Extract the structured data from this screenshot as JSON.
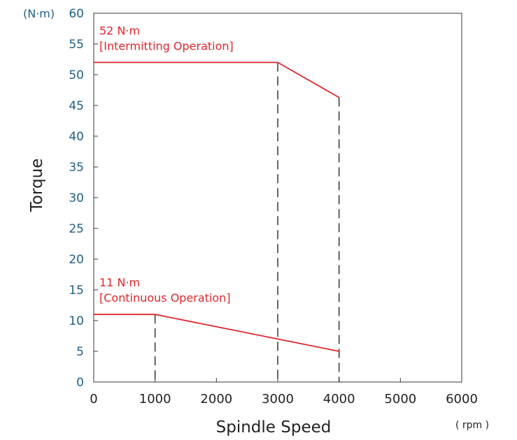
{
  "chart_data": {
    "type": "line",
    "title": "",
    "xlabel": "Spindle Speed",
    "ylabel": "Torque",
    "x_unit": "( rpm )",
    "y_unit": "(N·m)",
    "xlim": [
      0,
      6000
    ],
    "ylim": [
      0,
      60
    ],
    "x_ticks": [
      0,
      1000,
      2000,
      3000,
      4000,
      5000,
      6000
    ],
    "y_ticks": [
      0,
      5,
      10,
      15,
      20,
      25,
      30,
      35,
      40,
      45,
      50,
      55,
      60
    ],
    "grid": false,
    "series": [
      {
        "name": "",
        "color": "#e0262c",
        "x": [
          0,
          3000,
          4000
        ],
        "y": [
          52,
          52,
          46.3
        ]
      },
      {
        "name": "",
        "color": "#e0262c",
        "x": [
          0,
          1000,
          3000,
          4000
        ],
        "y": [
          11,
          11,
          7,
          5
        ]
      }
    ],
    "dashed_guides": [
      {
        "x": 3000,
        "y_top": 52
      },
      {
        "x": 4000,
        "y_top": 46.3
      },
      {
        "x": 1000,
        "y_top": 11
      }
    ],
    "annotations": [
      {
        "lines": [
          "52 N·m",
          "[Intermitting Operation]"
        ],
        "x": 0,
        "y": 52,
        "color": "#e0262c"
      },
      {
        "lines": [
          "11 N·m",
          "[Continuous Operation]"
        ],
        "x": 0,
        "y": 11,
        "color": "#e0262c"
      }
    ]
  }
}
